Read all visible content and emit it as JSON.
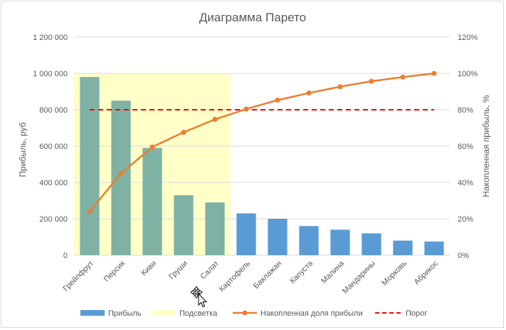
{
  "chart_data": {
    "type": "bar",
    "title": "Диаграмма Парето",
    "ylabel": "Прибыль, руб",
    "y2label": "Накопленная прибыль, %",
    "ylim": [
      0,
      1200000
    ],
    "y2lim": [
      0,
      1.2
    ],
    "yticks": [
      "0",
      "200 000",
      "400 000",
      "600 000",
      "800 000",
      "1 000 000",
      "1 200 000"
    ],
    "y2ticks": [
      "0%",
      "20%",
      "40%",
      "60%",
      "80%",
      "100%",
      "120%"
    ],
    "categories": [
      "Грейпфрут",
      "Персик",
      "Киви",
      "Груши",
      "Салат",
      "Картофель",
      "Баклажан",
      "Капуста",
      "Малина",
      "Мандарины",
      "Морковь",
      "Абрикос"
    ],
    "series": [
      {
        "name": "Прибыль",
        "type": "bar",
        "color": "#5b9bd5",
        "values": [
          980000,
          850000,
          590000,
          330000,
          290000,
          230000,
          200000,
          160000,
          140000,
          120000,
          80000,
          75000
        ]
      },
      {
        "name": "Накопленная доля прибыли",
        "type": "line",
        "color": "#ed7d31",
        "values": [
          0.24,
          0.45,
          0.595,
          0.676,
          0.747,
          0.804,
          0.853,
          0.892,
          0.927,
          0.957,
          0.98,
          1.0
        ]
      },
      {
        "name": "Порог",
        "type": "dashed-line",
        "color": "#ff0000",
        "value": 0.8
      }
    ],
    "highlight": {
      "name": "Подсветка",
      "color": "#ffffc8",
      "bar_color": "#7fb2a4",
      "categories_count": 5
    },
    "legend": "bottom",
    "grid": true
  }
}
